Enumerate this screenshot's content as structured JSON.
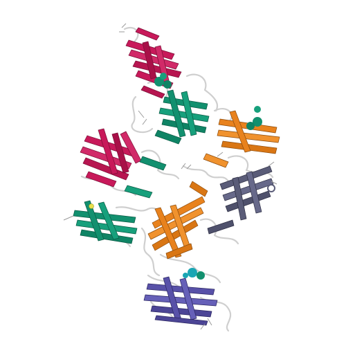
{
  "image": {
    "kind": "protein-ribbon-structure",
    "background": "#ffffff",
    "palette": {
      "crimson": "#c8195a",
      "teal": "#12906f",
      "orange": "#e8821d",
      "slate": "#5a5c78",
      "indigo": "#5851a8",
      "cyan": "#1aa6b4",
      "loop": "#d9d9d9",
      "outline": "#8a8a8a",
      "ligand_yellow": "#e8e04a"
    }
  }
}
